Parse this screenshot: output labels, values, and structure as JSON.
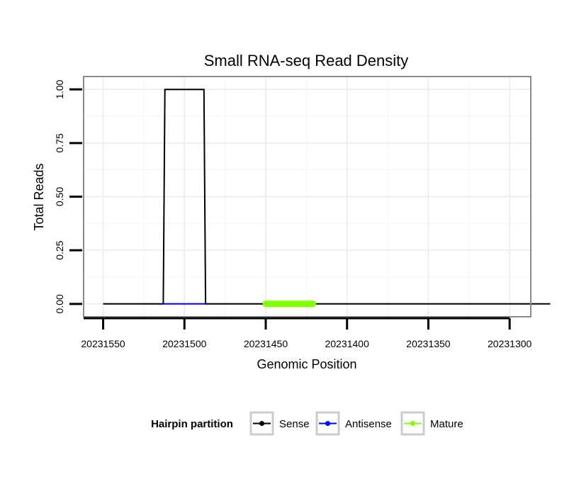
{
  "chart_data": {
    "type": "line",
    "title": "Small RNA-seq Read Density",
    "xlabel": "Genomic Position",
    "ylabel": "Total Reads",
    "x_reversed": true,
    "xlim": [
      20231562,
      20231287
    ],
    "ylim": [
      -0.06,
      1.06
    ],
    "x_ticks": [
      20231550,
      20231500,
      20231450,
      20231400,
      20231350,
      20231300
    ],
    "x_tick_labels": [
      "20231550",
      "20231500",
      "20231450",
      "20231400",
      "20231350",
      "20231300"
    ],
    "y_ticks": [
      0,
      0.25,
      0.5,
      0.75,
      1
    ],
    "y_tick_labels": [
      "0.00",
      "0.25",
      "0.50",
      "0.75",
      "1.00"
    ],
    "grid": true,
    "legend": {
      "title": "Hairpin partition",
      "position": "bottom",
      "entries": [
        {
          "name": "Sense",
          "color": "#000000"
        },
        {
          "name": "Antisense",
          "color": "#0000ff"
        },
        {
          "name": "Mature",
          "color": "#7fff00"
        }
      ]
    },
    "series": [
      {
        "name": "Sense",
        "color": "#000000",
        "x": [
          20231550,
          20231513,
          20231512,
          20231488,
          20231487,
          20231275
        ],
        "y": [
          0,
          0,
          1,
          1,
          0,
          0
        ]
      },
      {
        "name": "Antisense",
        "color": "#0000ff",
        "x": [
          20231513,
          20231487
        ],
        "y": [
          0,
          0
        ]
      },
      {
        "name": "Mature",
        "color": "#7fff00",
        "x": [
          20231450,
          20231421
        ],
        "y": [
          0,
          0
        ]
      }
    ]
  }
}
